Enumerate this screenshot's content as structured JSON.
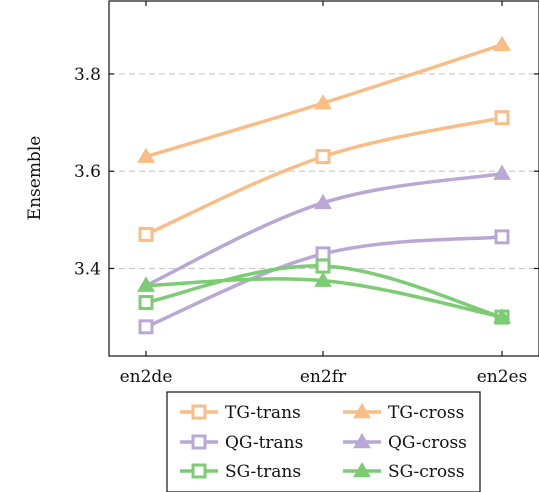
{
  "chart_data": {
    "type": "line",
    "ylabel": "Ensemble",
    "xlabel": "",
    "categories": [
      "en2de",
      "en2fr",
      "en2es"
    ],
    "ylim": [
      3.22,
      3.95
    ],
    "yticks": [
      3.4,
      3.6,
      3.8
    ],
    "ytick_labels": [
      "3.4",
      "3.6",
      "3.8"
    ],
    "grid": "horizontal-dashed",
    "legend_position": "bottom",
    "series": [
      {
        "name": "TG-trans",
        "values": [
          3.47,
          3.63,
          3.71
        ],
        "color": "#f9bd85",
        "marker": "square"
      },
      {
        "name": "TG-cross",
        "values": [
          3.63,
          3.74,
          3.86
        ],
        "color": "#f9bd85",
        "marker": "triangle"
      },
      {
        "name": "QG-trans",
        "values": [
          3.28,
          3.43,
          3.465
        ],
        "color": "#b9a8d5",
        "marker": "square"
      },
      {
        "name": "QG-cross",
        "values": [
          3.365,
          3.535,
          3.595
        ],
        "color": "#b9a8d5",
        "marker": "triangle"
      },
      {
        "name": "SG-trans",
        "values": [
          3.33,
          3.405,
          3.3
        ],
        "color": "#7bcc73",
        "marker": "square"
      },
      {
        "name": "SG-cross",
        "values": [
          3.365,
          3.375,
          3.3
        ],
        "color": "#7bcc73",
        "marker": "triangle"
      }
    ]
  }
}
